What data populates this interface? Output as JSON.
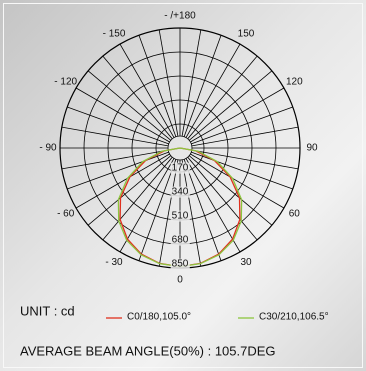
{
  "chart_data": {
    "type": "polar",
    "x": [
      -90,
      -80,
      -70,
      -60,
      -50,
      -40,
      -30,
      -20,
      -10,
      0,
      10,
      20,
      30,
      40,
      50,
      60,
      70,
      80,
      90
    ],
    "series": [
      {
        "name": "C0/180,105.0°",
        "color": "#e0301e",
        "values": [
          0,
          110,
          260,
          410,
          550,
          660,
          745,
          800,
          830,
          840,
          830,
          800,
          745,
          660,
          550,
          410,
          260,
          110,
          0
        ]
      },
      {
        "name": "C30/210,106.5°",
        "color": "#8cc63f",
        "values": [
          0,
          130,
          280,
          430,
          570,
          675,
          755,
          805,
          832,
          840,
          832,
          805,
          755,
          675,
          570,
          430,
          280,
          130,
          0
        ]
      }
    ],
    "rlim": [
      0,
      850
    ],
    "rticks": [
      170,
      340,
      510,
      680,
      850
    ],
    "angle_ticks": [
      {
        "value": 180,
        "label": "- /+180"
      },
      {
        "value": -150,
        "label": "- 150"
      },
      150,
      {
        "value": -120,
        "label": "- 120"
      },
      120,
      {
        "value": -90,
        "label": "- 90"
      },
      90,
      {
        "value": -60,
        "label": "- 60"
      },
      60,
      {
        "value": -30,
        "label": "- 30"
      },
      30,
      0
    ],
    "unit": "UNIT : cd",
    "footer": "AVERAGE BEAM ANGLE(50%) : 105.7DEG"
  }
}
